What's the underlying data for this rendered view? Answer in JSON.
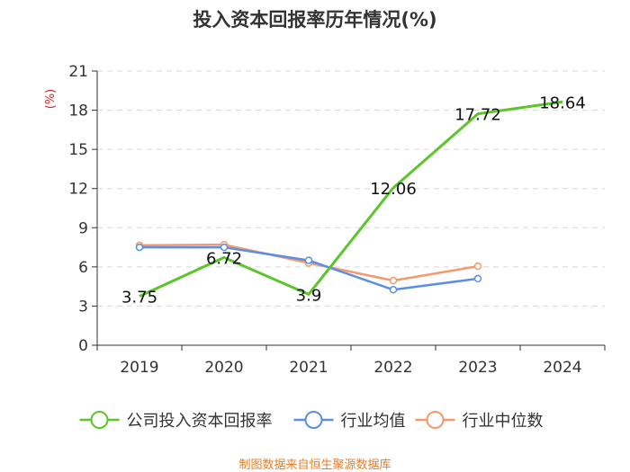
{
  "chart_data": {
    "type": "line",
    "title": "投入资本回报率历年情况(%)",
    "ylabel": "(%)",
    "categories": [
      "2019",
      "2020",
      "2021",
      "2022",
      "2023",
      "2024"
    ],
    "yticks": [
      "0",
      "3",
      "6",
      "9",
      "12",
      "15",
      "18",
      "21"
    ],
    "ylim": [
      0,
      21
    ],
    "grid": true,
    "legend_position": "bottom",
    "series": [
      {
        "name": "公司投入资本回报率",
        "color": "#5bc52a",
        "values": [
          3.75,
          6.72,
          3.9,
          12.06,
          17.72,
          18.64
        ],
        "labels": [
          "3.75",
          "6.72",
          "3.9",
          "12.06",
          "17.72",
          "18.64"
        ],
        "show_markers": false
      },
      {
        "name": "行业均值",
        "color": "#5b8ee6",
        "values": [
          7.5,
          7.5,
          6.5,
          4.25,
          5.1,
          null
        ],
        "show_markers": true
      },
      {
        "name": "行业中位数",
        "color": "#f5996a",
        "values": [
          7.65,
          7.7,
          6.3,
          4.95,
          6.05,
          null
        ],
        "show_markers": true
      }
    ]
  },
  "source": "制图数据来自恒生聚源数据库"
}
